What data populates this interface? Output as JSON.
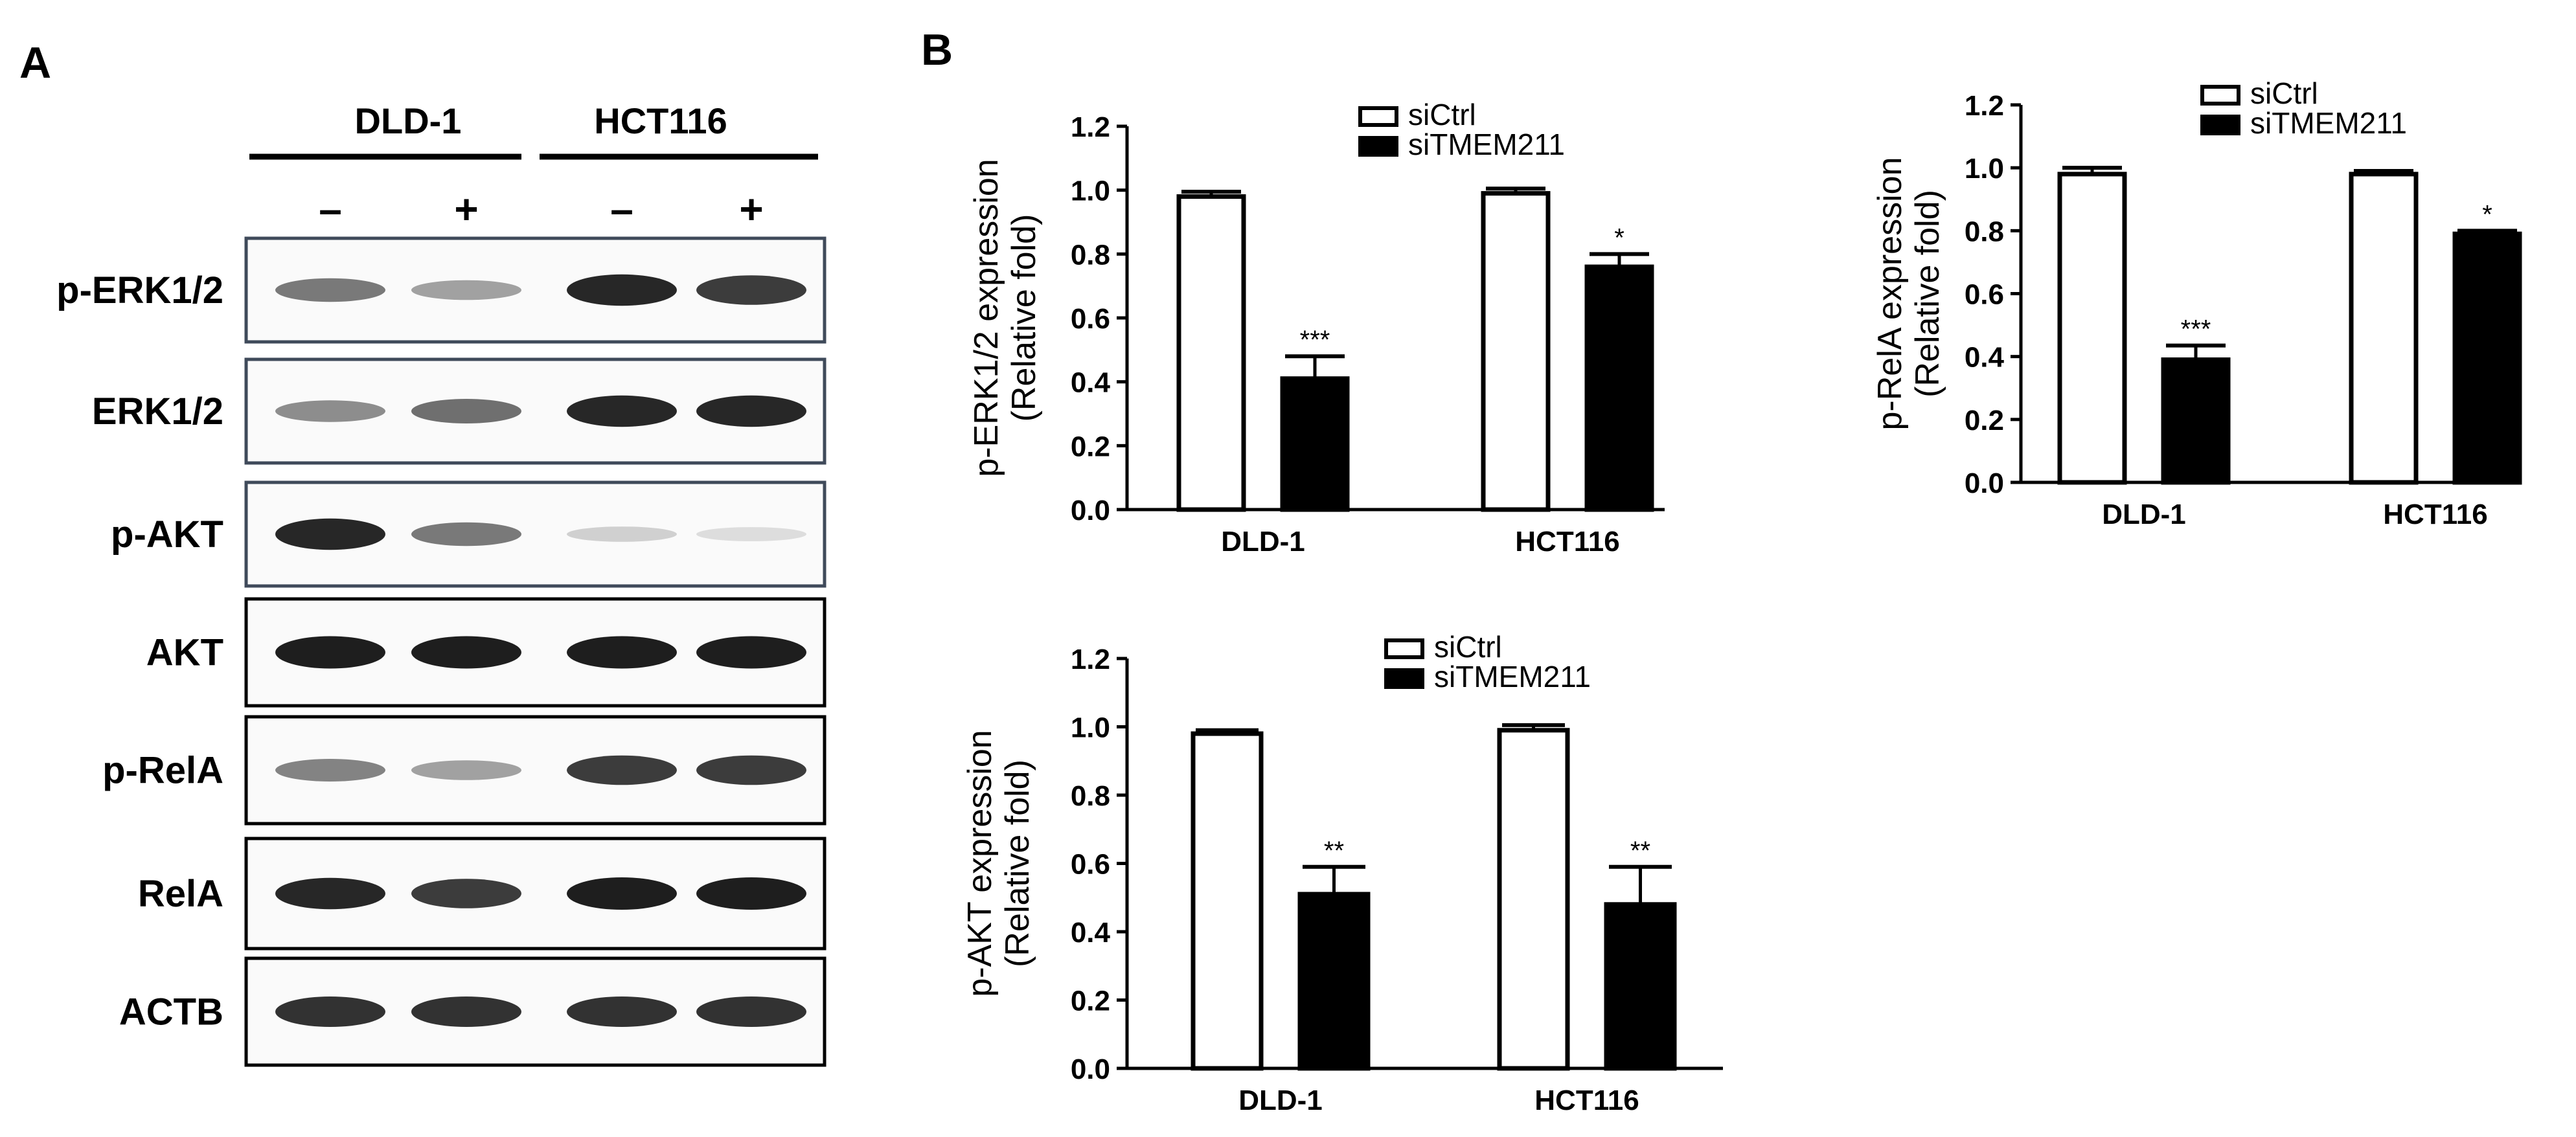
{
  "panel_a": {
    "letter": "A",
    "cell_lines": [
      "DLD-1",
      "HCT116"
    ],
    "treatments": [
      "–",
      "+",
      "–",
      "+"
    ],
    "blots": [
      {
        "label": "p-ERK1/2",
        "bands": [
          0.55,
          0.35,
          0.95,
          0.85
        ]
      },
      {
        "label": "ERK1/2",
        "bands": [
          0.45,
          0.6,
          0.95,
          0.95
        ]
      },
      {
        "label": "p-AKT",
        "bands": [
          0.95,
          0.55,
          0.12,
          0.06
        ]
      },
      {
        "label": "AKT",
        "bands": [
          1.0,
          1.0,
          1.0,
          1.0
        ]
      },
      {
        "label": "p-RelA",
        "bands": [
          0.5,
          0.35,
          0.85,
          0.85
        ]
      },
      {
        "label": "RelA",
        "bands": [
          0.95,
          0.85,
          1.0,
          1.0
        ]
      },
      {
        "label": "ACTB",
        "bands": [
          0.9,
          0.9,
          0.9,
          0.9
        ]
      }
    ]
  },
  "panel_b": {
    "letter": "B"
  },
  "chart_data": [
    {
      "type": "bar",
      "ylabel_line1": "p-ERK1/2 expression",
      "ylabel_line2": "(Relative fold)",
      "categories": [
        "DLD-1",
        "HCT116"
      ],
      "series": [
        {
          "name": "siCtrl",
          "values": [
            0.98,
            0.99
          ],
          "errors": [
            0.015,
            0.015
          ]
        },
        {
          "name": "siTMEM211",
          "values": [
            0.41,
            0.76
          ],
          "errors": [
            0.07,
            0.04
          ]
        }
      ],
      "significance": [
        "***",
        "*"
      ],
      "ylim": [
        0,
        1.2
      ],
      "yticks": [
        "0.0",
        "0.2",
        "0.4",
        "0.6",
        "0.8",
        "1.0",
        "1.2"
      ],
      "legend_position": "top"
    },
    {
      "type": "bar",
      "ylabel_line1": "p-RelA expression",
      "ylabel_line2": "(Relative fold)",
      "categories": [
        "DLD-1",
        "HCT116"
      ],
      "series": [
        {
          "name": "siCtrl",
          "values": [
            0.98,
            0.98
          ],
          "errors": [
            0.02,
            0.01
          ]
        },
        {
          "name": "siTMEM211",
          "values": [
            0.39,
            0.79
          ],
          "errors": [
            0.045,
            0.01
          ]
        }
      ],
      "significance": [
        "***",
        "*"
      ],
      "ylim": [
        0,
        1.2
      ],
      "yticks": [
        "0.0",
        "0.2",
        "0.4",
        "0.6",
        "0.8",
        "1.0",
        "1.2"
      ],
      "legend_position": "top"
    },
    {
      "type": "bar",
      "ylabel_line1": "p-AKT expression",
      "ylabel_line2": "(Relative fold)",
      "categories": [
        "DLD-1",
        "HCT116"
      ],
      "series": [
        {
          "name": "siCtrl",
          "values": [
            0.98,
            0.99
          ],
          "errors": [
            0.01,
            0.015
          ]
        },
        {
          "name": "siTMEM211",
          "values": [
            0.51,
            0.48
          ],
          "errors": [
            0.08,
            0.11
          ]
        }
      ],
      "significance": [
        "**",
        "**"
      ],
      "ylim": [
        0,
        1.2
      ],
      "yticks": [
        "0.0",
        "0.2",
        "0.4",
        "0.6",
        "0.8",
        "1.0",
        "1.2"
      ],
      "legend_position": "top"
    }
  ]
}
